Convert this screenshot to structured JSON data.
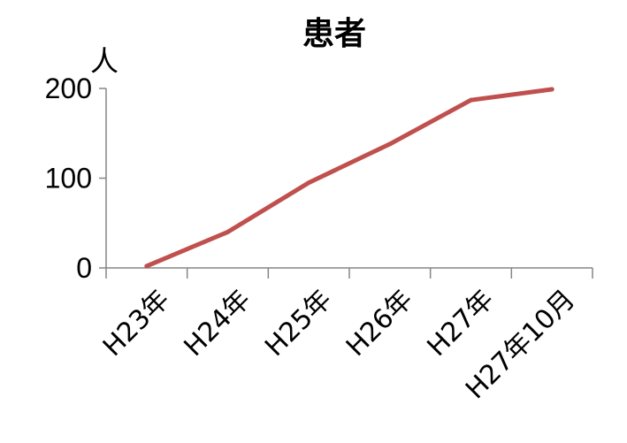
{
  "chart_data": {
    "type": "line",
    "title": "患者",
    "ylabel": "人",
    "xlabel": "",
    "categories": [
      "H23年",
      "H24年",
      "H25年",
      "H26年",
      "H27年",
      "H27年10月"
    ],
    "series": [
      {
        "values": [
          2,
          40,
          95,
          138,
          187,
          199
        ],
        "color": "#c0504d"
      }
    ],
    "yticks": [
      0,
      100,
      200
    ],
    "ylim": [
      0,
      200
    ],
    "grid": false,
    "legend": "none"
  }
}
